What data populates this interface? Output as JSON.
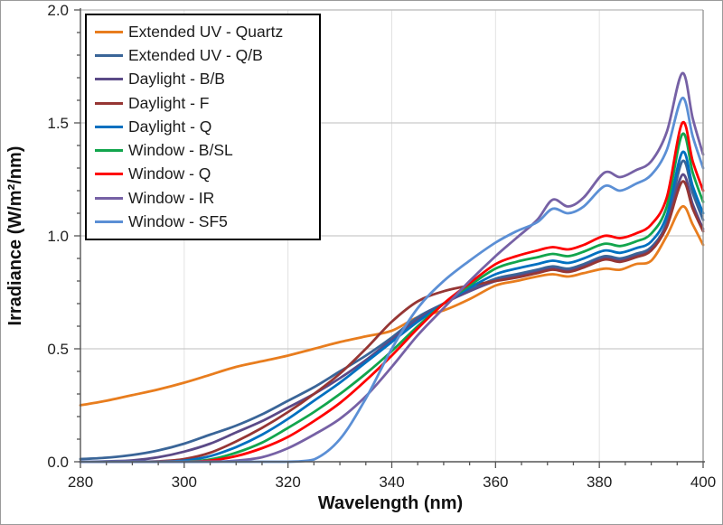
{
  "chart_data": {
    "type": "line",
    "title": "",
    "xlabel": "Wavelength (nm)",
    "ylabel": "Irradiance (W/m²/nm)",
    "xlim": [
      280,
      400
    ],
    "ylim": [
      0.0,
      2.0
    ],
    "xticks": [
      280,
      300,
      320,
      340,
      360,
      380,
      400
    ],
    "ytick_labels": [
      "0.0",
      "0.5",
      "1.0",
      "1.5",
      "2.0"
    ],
    "x_minor_step": 5,
    "y_minor_step": 0.1,
    "grid": "major gridlines on (light gray, horizontal and faint vertical)",
    "legend_position": "top-left inside plot, black border",
    "x": [
      280,
      285,
      290,
      295,
      300,
      305,
      310,
      315,
      320,
      325,
      330,
      335,
      340,
      345,
      350,
      355,
      360,
      364,
      368,
      371,
      374,
      377,
      381,
      384,
      387,
      390,
      393,
      396,
      398,
      400
    ],
    "series": [
      {
        "name": "Extended UV - Quartz",
        "color": "#E87D1E",
        "values": [
          0.25,
          0.27,
          0.295,
          0.32,
          0.35,
          0.385,
          0.42,
          0.445,
          0.47,
          0.5,
          0.53,
          0.555,
          0.58,
          0.64,
          0.67,
          0.72,
          0.78,
          0.8,
          0.82,
          0.83,
          0.82,
          0.835,
          0.855,
          0.85,
          0.875,
          0.89,
          1.0,
          1.13,
          1.05,
          0.96
        ]
      },
      {
        "name": "Extended UV - Q/B",
        "color": "#3A6598",
        "values": [
          0.012,
          0.018,
          0.03,
          0.05,
          0.08,
          0.12,
          0.16,
          0.21,
          0.27,
          0.33,
          0.4,
          0.47,
          0.55,
          0.64,
          0.7,
          0.76,
          0.81,
          0.83,
          0.85,
          0.865,
          0.855,
          0.875,
          0.91,
          0.9,
          0.92,
          0.95,
          1.06,
          1.33,
          1.19,
          1.07
        ]
      },
      {
        "name": "Daylight - B/B",
        "color": "#5B4A87",
        "values": [
          0,
          0.002,
          0.006,
          0.02,
          0.045,
          0.08,
          0.13,
          0.18,
          0.24,
          0.3,
          0.37,
          0.45,
          0.54,
          0.63,
          0.7,
          0.755,
          0.8,
          0.82,
          0.84,
          0.855,
          0.845,
          0.865,
          0.9,
          0.89,
          0.91,
          0.94,
          1.05,
          1.27,
          1.14,
          1.03
        ]
      },
      {
        "name": "Daylight - F",
        "color": "#963634",
        "values": [
          0,
          0,
          0,
          0.002,
          0.012,
          0.04,
          0.09,
          0.15,
          0.22,
          0.3,
          0.39,
          0.5,
          0.62,
          0.71,
          0.755,
          0.78,
          0.8,
          0.815,
          0.835,
          0.85,
          0.84,
          0.86,
          0.895,
          0.885,
          0.905,
          0.935,
          1.04,
          1.24,
          1.12,
          1.02
        ]
      },
      {
        "name": "Daylight - Q",
        "color": "#0070C0",
        "values": [
          0,
          0,
          0,
          0,
          0.005,
          0.025,
          0.065,
          0.12,
          0.19,
          0.27,
          0.35,
          0.44,
          0.53,
          0.62,
          0.7,
          0.77,
          0.83,
          0.855,
          0.875,
          0.89,
          0.88,
          0.9,
          0.935,
          0.925,
          0.945,
          0.975,
          1.09,
          1.37,
          1.22,
          1.1
        ]
      },
      {
        "name": "Window - B/SL",
        "color": "#12A54D",
        "values": [
          0,
          0,
          0,
          0,
          0,
          0.01,
          0.04,
          0.085,
          0.15,
          0.22,
          0.3,
          0.39,
          0.49,
          0.6,
          0.7,
          0.78,
          0.855,
          0.885,
          0.905,
          0.92,
          0.91,
          0.93,
          0.965,
          0.955,
          0.975,
          1.01,
          1.13,
          1.45,
          1.28,
          1.15
        ]
      },
      {
        "name": "Window - Q",
        "color": "#FE0000",
        "values": [
          0,
          0,
          0,
          0,
          0,
          0.005,
          0.025,
          0.06,
          0.11,
          0.18,
          0.26,
          0.36,
          0.47,
          0.59,
          0.7,
          0.79,
          0.875,
          0.91,
          0.935,
          0.95,
          0.94,
          0.96,
          1.0,
          0.99,
          1.01,
          1.05,
          1.17,
          1.5,
          1.33,
          1.2
        ]
      },
      {
        "name": "Window - IR",
        "color": "#7661A5",
        "values": [
          0,
          0,
          0,
          0,
          0,
          0,
          0.005,
          0.02,
          0.06,
          0.12,
          0.19,
          0.29,
          0.42,
          0.56,
          0.68,
          0.8,
          0.91,
          0.99,
          1.07,
          1.16,
          1.13,
          1.17,
          1.28,
          1.26,
          1.29,
          1.33,
          1.46,
          1.72,
          1.52,
          1.36
        ]
      },
      {
        "name": "Window - SF5",
        "color": "#5B8FD5",
        "values": [
          0,
          0,
          0,
          0,
          0,
          0,
          0,
          0,
          0,
          0.01,
          0.1,
          0.28,
          0.5,
          0.68,
          0.8,
          0.89,
          0.97,
          1.02,
          1.06,
          1.12,
          1.1,
          1.13,
          1.22,
          1.2,
          1.23,
          1.27,
          1.38,
          1.61,
          1.44,
          1.3
        ]
      }
    ]
  }
}
